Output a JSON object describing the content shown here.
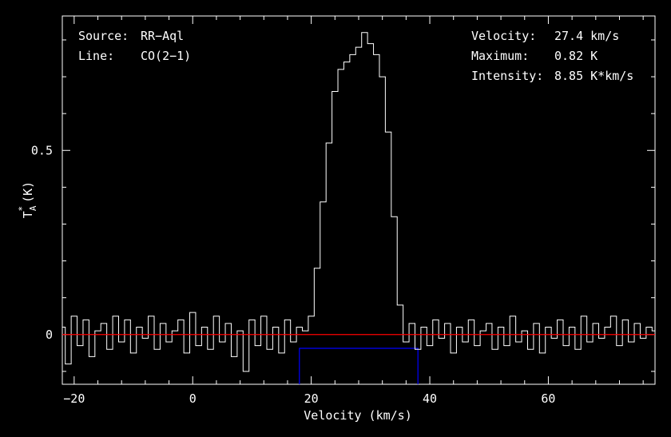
{
  "chart_data": {
    "type": "line",
    "title": "",
    "xlabel": "Velocity (km/s)",
    "ylabel": "T",
    "ylabel_sub": "A",
    "ylabel_sup": "*",
    "ylabel_unit": "(K)",
    "xlim": [
      -22,
      78
    ],
    "ylim": [
      -0.135,
      0.865
    ],
    "x_ticks": [
      -20,
      0,
      20,
      40,
      60
    ],
    "x_tick_labels": [
      "−20",
      "0",
      "20",
      "40",
      "60"
    ],
    "y_ticks": [
      0,
      0.5
    ],
    "y_tick_labels": [
      "0",
      "0.5"
    ],
    "grid": false,
    "baseline": {
      "y": 0,
      "color": "#ff0000"
    },
    "window": {
      "x_range": [
        18,
        38
      ],
      "color": "#0000ff"
    },
    "info_left": [
      {
        "key": "Source:",
        "value": "RR−Aql"
      },
      {
        "key": "Line:",
        "value": "CO(2−1)"
      }
    ],
    "info_right": [
      {
        "key": "Velocity:",
        "value": "27.4 km/s"
      },
      {
        "key": "Maximum:",
        "value": "0.82 K"
      },
      {
        "key": "Intensity:",
        "value": "8.85 K*km/s"
      }
    ],
    "series": [
      {
        "style": "histogram",
        "color": "#ffffff",
        "x": [
          -22,
          -21,
          -20,
          -19,
          -18,
          -17,
          -16,
          -15,
          -14,
          -13,
          -12,
          -11,
          -10,
          -9,
          -8,
          -7,
          -6,
          -5,
          -4,
          -3,
          -2,
          -1,
          0,
          1,
          2,
          3,
          4,
          5,
          6,
          7,
          8,
          9,
          10,
          11,
          12,
          13,
          14,
          15,
          16,
          17,
          18,
          19,
          20,
          21,
          22,
          23,
          24,
          25,
          26,
          27,
          28,
          29,
          30,
          31,
          32,
          33,
          34,
          35,
          36,
          37,
          38,
          39,
          40,
          41,
          42,
          43,
          44,
          45,
          46,
          47,
          48,
          49,
          50,
          51,
          52,
          53,
          54,
          55,
          56,
          57,
          58,
          59,
          60,
          61,
          62,
          63,
          64,
          65,
          66,
          67,
          68,
          69,
          70,
          71,
          72,
          73,
          74,
          75,
          76,
          77,
          78
        ],
        "values": [
          0.02,
          -0.08,
          0.05,
          -0.03,
          0.04,
          -0.06,
          0.01,
          0.03,
          -0.04,
          0.05,
          -0.02,
          0.04,
          -0.05,
          0.02,
          -0.01,
          0.05,
          -0.04,
          0.03,
          -0.02,
          0.01,
          0.04,
          -0.05,
          0.06,
          -0.03,
          0.02,
          -0.04,
          0.05,
          -0.02,
          0.03,
          -0.06,
          0.01,
          -0.1,
          0.04,
          -0.03,
          0.05,
          -0.04,
          0.02,
          -0.05,
          0.04,
          -0.02,
          0.02,
          0.01,
          0.05,
          0.18,
          0.36,
          0.52,
          0.66,
          0.72,
          0.74,
          0.76,
          0.78,
          0.82,
          0.79,
          0.76,
          0.7,
          0.55,
          0.32,
          0.08,
          -0.02,
          0.03,
          -0.04,
          0.02,
          -0.03,
          0.04,
          -0.01,
          0.03,
          -0.05,
          0.02,
          -0.02,
          0.04,
          -0.03,
          0.01,
          0.03,
          -0.04,
          0.02,
          -0.03,
          0.05,
          -0.02,
          0.01,
          -0.04,
          0.03,
          -0.05,
          0.02,
          -0.01,
          0.04,
          -0.03,
          0.02,
          -0.04,
          0.05,
          -0.02,
          0.03,
          -0.01,
          0.02,
          0.05,
          -0.03,
          0.04,
          -0.02,
          0.03,
          -0.01,
          0.02,
          0.01
        ]
      }
    ]
  }
}
